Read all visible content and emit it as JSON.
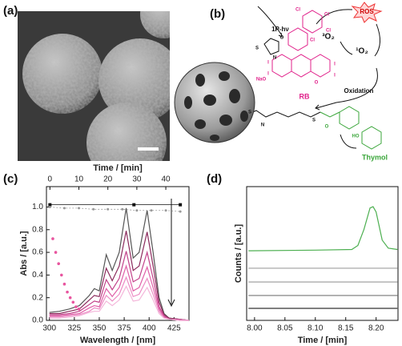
{
  "panel_labels": [
    "(a)",
    "(b)",
    "(c)",
    "(d)"
  ],
  "scheme": {
    "light": "1P-hν",
    "triplet_oxygen": "³O₂",
    "ros": "ROS",
    "singlet_oxygen": "¹O₂",
    "dye": "RB",
    "reaction": "Oxidation",
    "product": "Thymol",
    "atoms": [
      "S",
      "N",
      "O",
      "Cl",
      "Cl",
      "Cl",
      "Cl",
      "I",
      "I",
      "I",
      "I",
      "NaO",
      "O",
      "S",
      "N",
      "S",
      "O",
      "HO"
    ]
  },
  "chart_data": [
    {
      "type": "line",
      "x_label": "Wavelength / [nm]",
      "y_label": "Abs / [a.u.]",
      "x2_label": "Time / [min]",
      "x": [
        300,
        310,
        320,
        330,
        340,
        345,
        350,
        357,
        363,
        370,
        377,
        384,
        390,
        398,
        404,
        410,
        415,
        420,
        430,
        440
      ],
      "series": [
        {
          "color": "#555555",
          "values": [
            0.07,
            0.08,
            0.1,
            0.13,
            0.22,
            0.28,
            0.26,
            0.58,
            0.44,
            0.6,
            0.99,
            0.55,
            0.6,
            0.97,
            0.6,
            0.2,
            0.06,
            0.02,
            0.01,
            0
          ]
        },
        {
          "color": "#8b2a5c",
          "values": [
            0.06,
            0.06,
            0.08,
            0.1,
            0.18,
            0.22,
            0.21,
            0.46,
            0.35,
            0.48,
            0.79,
            0.44,
            0.48,
            0.78,
            0.48,
            0.16,
            0.05,
            0.02,
            0.01,
            0
          ]
        },
        {
          "color": "#c2428a",
          "values": [
            0.05,
            0.05,
            0.06,
            0.08,
            0.14,
            0.17,
            0.16,
            0.36,
            0.27,
            0.37,
            0.61,
            0.34,
            0.37,
            0.6,
            0.37,
            0.12,
            0.04,
            0.01,
            0.01,
            0
          ]
        },
        {
          "color": "#e060a8",
          "values": [
            0.04,
            0.04,
            0.05,
            0.06,
            0.11,
            0.13,
            0.12,
            0.28,
            0.21,
            0.29,
            0.48,
            0.26,
            0.29,
            0.47,
            0.29,
            0.1,
            0.03,
            0.01,
            0,
            0
          ]
        },
        {
          "color": "#ec8cc4",
          "values": [
            0.03,
            0.03,
            0.04,
            0.05,
            0.08,
            0.11,
            0.1,
            0.22,
            0.17,
            0.23,
            0.38,
            0.21,
            0.23,
            0.37,
            0.23,
            0.08,
            0.02,
            0.01,
            0,
            0
          ]
        },
        {
          "color": "#f4b6da",
          "values": [
            0.02,
            0.02,
            0.03,
            0.04,
            0.07,
            0.08,
            0.08,
            0.17,
            0.13,
            0.18,
            0.3,
            0.17,
            0.18,
            0.29,
            0.18,
            0.06,
            0.02,
            0.01,
            0,
            0
          ]
        }
      ],
      "kinetics": [
        {
          "color": "#111111",
          "marker": "square",
          "axis": "x2",
          "x": [
            0,
            29,
            45
          ],
          "values": [
            1.02,
            1.02,
            1.02
          ]
        },
        {
          "color": "#999999",
          "marker": "circle",
          "axis": "x2",
          "x": [
            0,
            5,
            10,
            15,
            20,
            25,
            30,
            35,
            40,
            45
          ],
          "values": [
            1.0,
            0.99,
            0.99,
            0.98,
            0.98,
            0.98,
            0.97,
            0.97,
            0.97,
            0.96
          ]
        },
        {
          "color": "#e8559f",
          "marker": "star",
          "axis": "x2",
          "x": [
            1,
            2,
            3,
            4,
            5,
            6,
            7,
            8,
            9,
            10
          ],
          "values": [
            0.72,
            0.6,
            0.5,
            0.4,
            0.32,
            0.25,
            0.2,
            0.16,
            0.12,
            0.1
          ]
        }
      ],
      "xlim": [
        297,
        440
      ],
      "xticks": [
        300,
        325,
        350,
        375,
        400,
        425
      ],
      "x2lim": [
        -1.2,
        48
      ],
      "x2ticks": [
        0,
        10,
        20,
        30,
        40
      ],
      "ylim": [
        0,
        1.18
      ],
      "yticks": [
        {
          "value": 0,
          "label": "0.0"
        },
        {
          "value": 0.2,
          "label": "0.2"
        },
        {
          "value": 0.4,
          "label": "0.4"
        },
        {
          "value": 0.6,
          "label": "0.6"
        },
        {
          "value": 0.8,
          "label": "0.8"
        },
        {
          "value": 1,
          "label": "1.0"
        }
      ]
    },
    {
      "type": "line",
      "x_label": "Time / [min]",
      "y_label": "Counts / [a.u.]",
      "series": [
        {
          "color": "#333333",
          "x": [
            7.99,
            8.235
          ],
          "values": [
            0.9,
            0.9
          ]
        },
        {
          "color": "#777777",
          "x": [
            7.99,
            8.235
          ],
          "values": [
            1.86,
            1.86
          ]
        },
        {
          "color": "#999999",
          "x": [
            7.99,
            8.235
          ],
          "values": [
            2.87,
            2.87
          ]
        },
        {
          "color": "#aaaaaa",
          "x": [
            7.99,
            8.235
          ],
          "values": [
            3.9,
            3.9
          ]
        },
        {
          "color": "#4caf50",
          "x": [
            7.99,
            8.1,
            8.16,
            8.17,
            8.18,
            8.19,
            8.195,
            8.2,
            8.21,
            8.22,
            8.235
          ],
          "values": [
            5.2,
            5.25,
            5.3,
            5.6,
            6.8,
            8.4,
            8.5,
            8.1,
            6.0,
            5.4,
            5.3
          ]
        }
      ],
      "xlim": [
        7.987,
        8.236
      ],
      "xticks": [
        {
          "value": 8,
          "label": "8.00"
        },
        {
          "value": 8.05,
          "label": "8.05"
        },
        {
          "value": 8.1,
          "label": "8.10"
        },
        {
          "value": 8.15,
          "label": "8.15"
        },
        {
          "value": 8.2,
          "label": "8.20"
        }
      ],
      "ylim": [
        0,
        10
      ]
    }
  ]
}
